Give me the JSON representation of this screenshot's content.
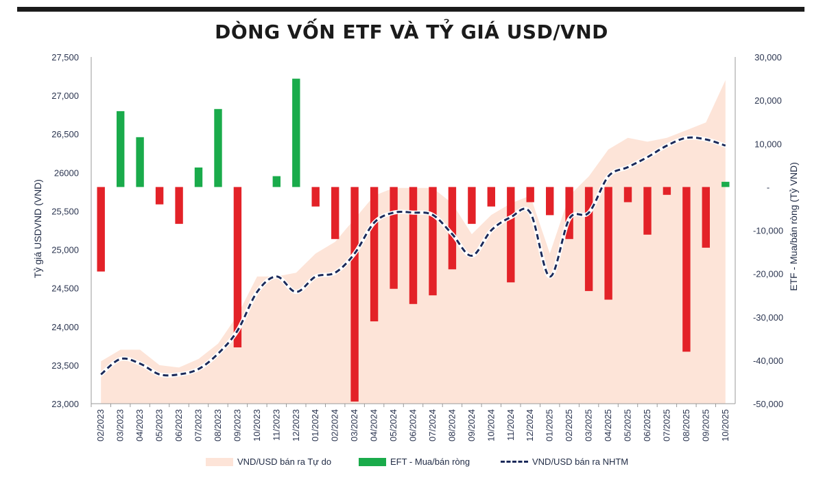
{
  "title": "DÒNG VỐN ETF VÀ TỶ GIÁ USD/VND",
  "chart_data": {
    "type": "bar",
    "categories": [
      "02/2023",
      "03/2023",
      "04/2023",
      "05/2023",
      "06/2023",
      "07/2023",
      "08/2023",
      "09/2023",
      "10/2023",
      "11/2023",
      "12/2023",
      "01/2024",
      "02/2024",
      "03/2024",
      "04/2024",
      "05/2024",
      "06/2024",
      "07/2024",
      "08/2024",
      "09/2024",
      "10/2024",
      "11/2024",
      "12/2024",
      "01/2025",
      "02/2025",
      "03/2025",
      "04/2025",
      "05/2025",
      "06/2025",
      "07/2025",
      "08/2025",
      "09/2025",
      "10/2025"
    ],
    "y_left": {
      "label": "Tỷ giá USDVND (VND)",
      "ylim": [
        23000,
        27500
      ],
      "ticks": [
        "23,000",
        "23,500",
        "24,000",
        "24,500",
        "25,000",
        "25,500",
        "26000",
        "26,500",
        "27,000",
        "27,500"
      ]
    },
    "y_right": {
      "label": "ETF - Mua/bán ròng (Tỷ VND)",
      "ylim": [
        -50000,
        30000
      ],
      "ticks": [
        "-50,000",
        "-40,000",
        "-30,000",
        "-20,000",
        "-10,000",
        "-",
        "10,000",
        "20,000",
        "30,000"
      ]
    },
    "series": [
      {
        "name": "VND/USD bán ra Tự do",
        "type": "area",
        "axis": "left",
        "color": "#fde4d8",
        "values": [
          23550,
          23700,
          23700,
          23500,
          23470,
          23580,
          23780,
          24150,
          24650,
          24650,
          24700,
          24950,
          25100,
          25400,
          25700,
          25800,
          25800,
          25800,
          25600,
          25200,
          25450,
          25600,
          25700,
          24950,
          25700,
          25950,
          26300,
          26450,
          26400,
          26450,
          26550,
          26650,
          27200
        ]
      },
      {
        "name": "EFT - Mua/bán ròng",
        "type": "bar",
        "axis": "right",
        "color_pos": "#1aab4b",
        "color_neg": "#e32228",
        "values": [
          -19500,
          17500,
          11500,
          -4000,
          -8500,
          4500,
          18000,
          -37000,
          0,
          2500,
          25000,
          -4500,
          -12000,
          -49500,
          -31000,
          -23500,
          -27000,
          -25000,
          -19000,
          -8500,
          -4500,
          -22000,
          -3500,
          -6500,
          -12000,
          -24000,
          -26000,
          -3500,
          -11000,
          -1800,
          -38000,
          -14000,
          1200
        ]
      },
      {
        "name": "VND/USD bán ra NHTM",
        "type": "line",
        "axis": "left",
        "color": "#1b2a5a",
        "dashed": true,
        "values": [
          23380,
          23580,
          23520,
          23380,
          23380,
          23450,
          23650,
          23950,
          24450,
          24650,
          24450,
          24650,
          24700,
          24950,
          25350,
          25480,
          25480,
          25450,
          25200,
          24920,
          25250,
          25420,
          25480,
          24650,
          25400,
          25480,
          25950,
          26070,
          26200,
          26350,
          26450,
          26430,
          26350
        ]
      }
    ],
    "legend_position": "bottom",
    "grid": false
  }
}
